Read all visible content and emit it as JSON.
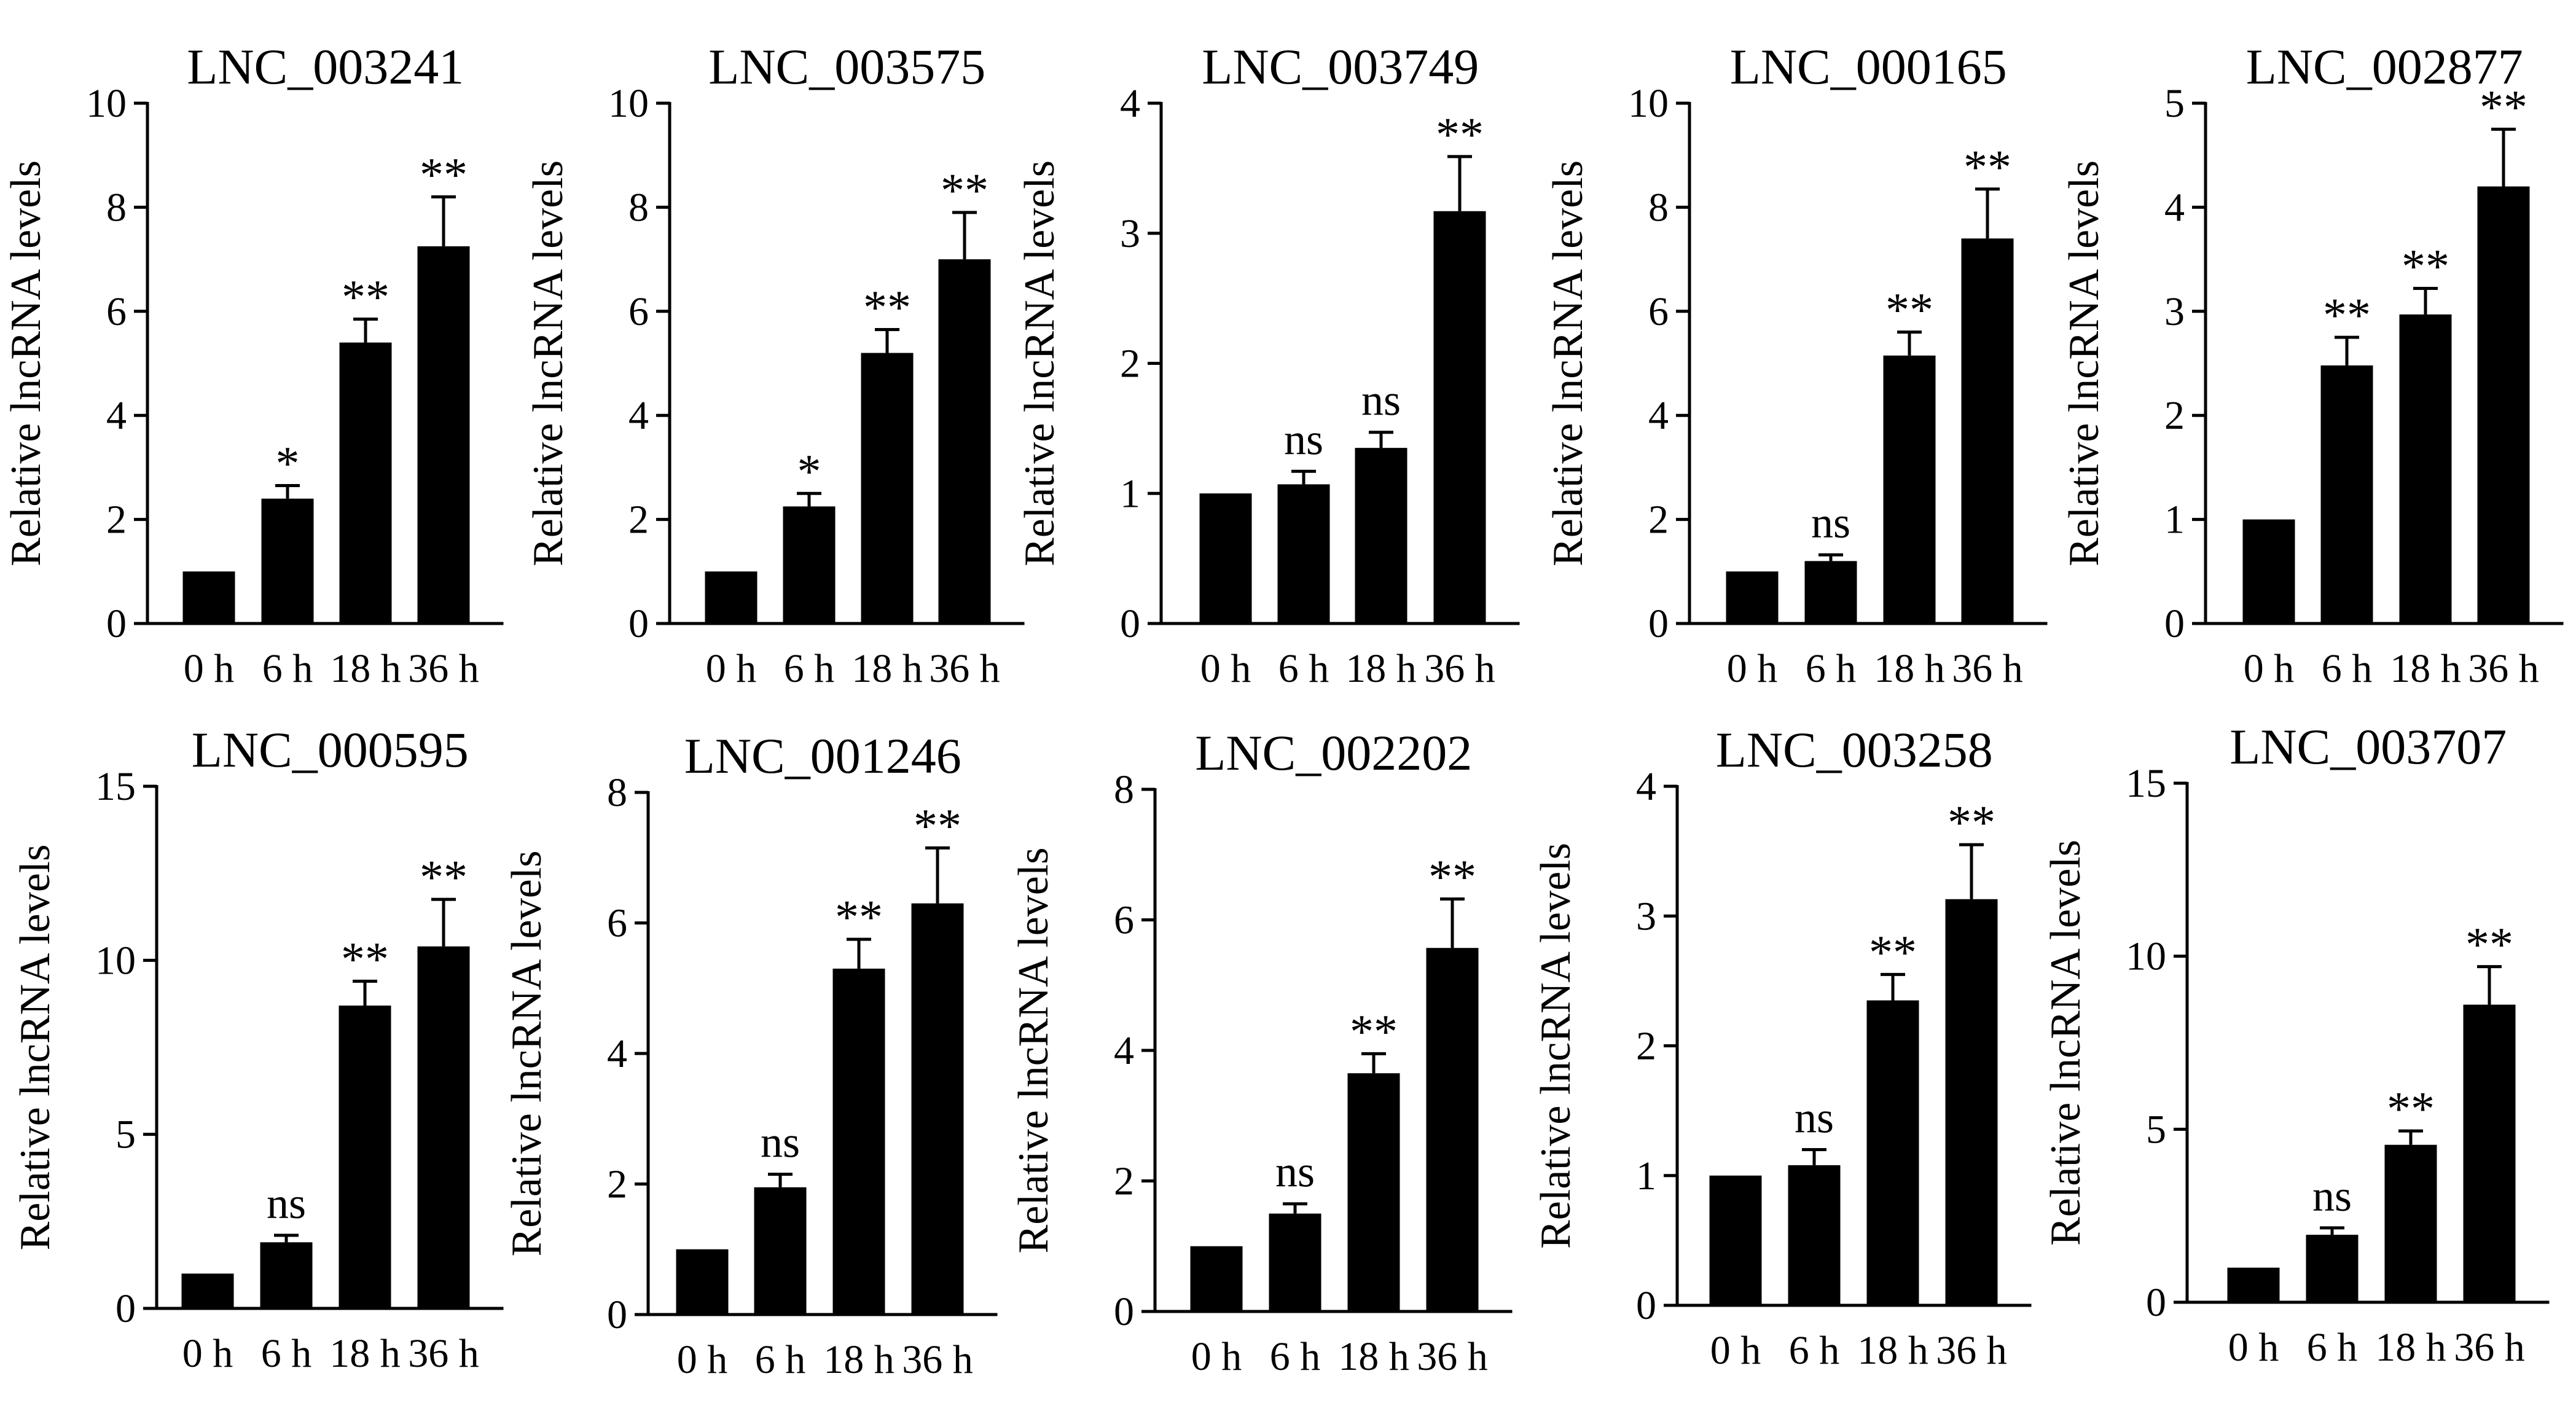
{
  "figure": {
    "description_label": "lncRNA relative expression time course",
    "colors": {
      "bar": "#000000",
      "axis": "#000000",
      "text": "#000000",
      "background": "#ffffff"
    }
  },
  "chart_data": [
    {
      "type": "bar",
      "title": "LNC_003241",
      "ylabel": "Relative lncRNA levels",
      "xlabel": "",
      "categories": [
        "0 h",
        "6 h",
        "18 h",
        "36 h"
      ],
      "values": [
        1.0,
        2.4,
        5.4,
        7.25
      ],
      "errors": [
        0,
        0.25,
        0.45,
        0.95
      ],
      "significance": [
        "",
        "*",
        "**",
        "**"
      ],
      "ylim": [
        0,
        10
      ],
      "yticks": [
        0,
        2,
        4,
        6,
        8,
        10
      ]
    },
    {
      "type": "bar",
      "title": "LNC_003575",
      "ylabel": "Relative lncRNA levels",
      "xlabel": "",
      "categories": [
        "0 h",
        "6 h",
        "18 h",
        "36 h"
      ],
      "values": [
        1.0,
        2.25,
        5.2,
        7.0
      ],
      "errors": [
        0,
        0.25,
        0.45,
        0.9
      ],
      "significance": [
        "",
        "*",
        "**",
        "**"
      ],
      "ylim": [
        0,
        10
      ],
      "yticks": [
        0,
        2,
        4,
        6,
        8,
        10
      ]
    },
    {
      "type": "bar",
      "title": "LNC_003749",
      "ylabel": "Relative lncRNA levels",
      "xlabel": "",
      "categories": [
        "0 h",
        "6 h",
        "18 h",
        "36 h"
      ],
      "values": [
        1.0,
        1.07,
        1.35,
        3.17
      ],
      "errors": [
        0,
        0.1,
        0.12,
        0.42
      ],
      "significance": [
        "",
        "ns",
        "ns",
        "**"
      ],
      "ylim": [
        0,
        4
      ],
      "yticks": [
        0,
        1,
        2,
        3,
        4
      ]
    },
    {
      "type": "bar",
      "title": "LNC_000165",
      "ylabel": "Relative lncRNA levels",
      "xlabel": "",
      "categories": [
        "0 h",
        "6 h",
        "18 h",
        "36 h"
      ],
      "values": [
        1.0,
        1.2,
        5.15,
        7.4
      ],
      "errors": [
        0,
        0.12,
        0.45,
        0.95
      ],
      "significance": [
        "",
        "ns",
        "**",
        "**"
      ],
      "ylim": [
        0,
        10
      ],
      "yticks": [
        0,
        2,
        4,
        6,
        8,
        10
      ]
    },
    {
      "type": "bar",
      "title": "LNC_002877",
      "ylabel": "Relative lncRNA levels",
      "xlabel": "",
      "categories": [
        "0 h",
        "6 h",
        "18 h",
        "36 h"
      ],
      "values": [
        1.0,
        2.48,
        2.97,
        4.2
      ],
      "errors": [
        0,
        0.27,
        0.25,
        0.55
      ],
      "significance": [
        "",
        "**",
        "**",
        "**"
      ],
      "ylim": [
        0,
        5
      ],
      "yticks": [
        0,
        1,
        2,
        3,
        4,
        5
      ]
    },
    {
      "type": "bar",
      "title": "LNC_000595",
      "ylabel": "Relative lncRNA levels",
      "xlabel": "",
      "categories": [
        "0 h",
        "6 h",
        "18 h",
        "36 h"
      ],
      "values": [
        1.0,
        1.9,
        8.7,
        10.4
      ],
      "errors": [
        0,
        0.2,
        0.7,
        1.35
      ],
      "significance": [
        "",
        "ns",
        "**",
        "**"
      ],
      "ylim": [
        0,
        15
      ],
      "yticks": [
        0,
        5,
        10,
        15
      ]
    },
    {
      "type": "bar",
      "title": "LNC_001246",
      "ylabel": "Relative lncRNA levels",
      "xlabel": "",
      "categories": [
        "0 h",
        "6 h",
        "18 h",
        "36 h"
      ],
      "values": [
        1.0,
        1.95,
        5.3,
        6.3
      ],
      "errors": [
        0,
        0.2,
        0.45,
        0.85
      ],
      "significance": [
        "",
        "ns",
        "**",
        "**"
      ],
      "ylim": [
        0,
        8
      ],
      "yticks": [
        0,
        2,
        4,
        6,
        8
      ]
    },
    {
      "type": "bar",
      "title": "LNC_002202",
      "ylabel": "Relative lncRNA levels",
      "xlabel": "",
      "categories": [
        "0 h",
        "6 h",
        "18 h",
        "36 h"
      ],
      "values": [
        1.0,
        1.5,
        3.65,
        5.57
      ],
      "errors": [
        0,
        0.15,
        0.3,
        0.75
      ],
      "significance": [
        "",
        "ns",
        "**",
        "**"
      ],
      "ylim": [
        0,
        8
      ],
      "yticks": [
        0,
        2,
        4,
        6,
        8
      ]
    },
    {
      "type": "bar",
      "title": "LNC_003258",
      "ylabel": "Relative lncRNA levels",
      "xlabel": "",
      "categories": [
        "0 h",
        "6 h",
        "18 h",
        "36 h"
      ],
      "values": [
        1.0,
        1.08,
        2.35,
        3.13
      ],
      "errors": [
        0,
        0.12,
        0.2,
        0.42
      ],
      "significance": [
        "",
        "ns",
        "**",
        "**"
      ],
      "ylim": [
        0,
        4
      ],
      "yticks": [
        0,
        1,
        2,
        3,
        4
      ]
    },
    {
      "type": "bar",
      "title": "LNC_003707",
      "ylabel": "Relative lncRNA levels",
      "xlabel": "",
      "categories": [
        "0 h",
        "6 h",
        "18 h",
        "36 h"
      ],
      "values": [
        1.0,
        1.95,
        4.55,
        8.6
      ],
      "errors": [
        0,
        0.2,
        0.4,
        1.1
      ],
      "significance": [
        "",
        "ns",
        "**",
        "**"
      ],
      "ylim": [
        0,
        15
      ],
      "yticks": [
        0,
        5,
        10,
        15
      ]
    }
  ]
}
